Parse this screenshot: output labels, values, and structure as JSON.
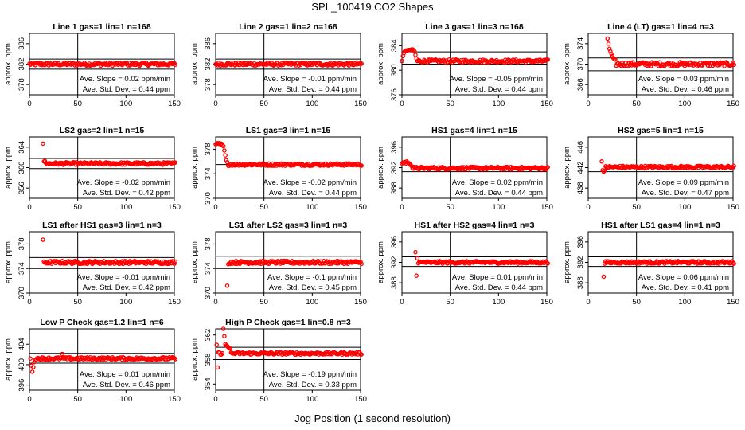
{
  "title": "SPL_100419  CO2 Shapes",
  "xlabel": "Jog Position (1 second resolution)",
  "ylabel": "approx. ppm",
  "stats_labels": {
    "slope": "Ave. Slope =",
    "slope_unit": "ppm/min",
    "std": "Ave. Std. Dev. =",
    "std_unit": "ppm"
  },
  "colors": {
    "points": "#ff0000",
    "axes": "#000000"
  },
  "chart_data": [
    {
      "type": "scatter",
      "title": "Line 1 gas=1 lin=1 n=168",
      "xlim": [
        0,
        150
      ],
      "ylim": [
        376,
        388
      ],
      "yticks": [
        378,
        382,
        386
      ],
      "xticks": [
        0,
        50,
        100,
        150
      ],
      "hlines": [
        381,
        383
      ],
      "vline": 50,
      "slope": "0.02",
      "std": "0.44",
      "profile": {
        "base": 382,
        "noise": 0.3,
        "spikes": []
      }
    },
    {
      "type": "scatter",
      "title": "Line 2 gas=1 lin=2 n=168",
      "xlim": [
        0,
        150
      ],
      "ylim": [
        376,
        388
      ],
      "yticks": [
        378,
        382,
        386
      ],
      "xticks": [
        0,
        50,
        100,
        150
      ],
      "hlines": [
        381,
        383
      ],
      "vline": 50,
      "slope": "-0.01",
      "std": "0.44",
      "profile": {
        "base": 382,
        "noise": 0.3,
        "spikes": []
      }
    },
    {
      "type": "scatter",
      "title": "Line 3 gas=1 lin=3 n=168",
      "xlim": [
        0,
        150
      ],
      "ylim": [
        376,
        386
      ],
      "yticks": [
        376,
        380,
        384
      ],
      "xticks": [
        0,
        50,
        100,
        150
      ],
      "hlines": [
        381,
        383
      ],
      "vline": 50,
      "slope": "-0.05",
      "std": "0.44",
      "profile": {
        "base": 381.5,
        "noise": 0.25,
        "spikes": [
          [
            1,
            382.3
          ],
          [
            2,
            382.8
          ],
          [
            3,
            383.1
          ],
          [
            4,
            383.2
          ],
          [
            5,
            383.2
          ],
          [
            6,
            383.3
          ],
          [
            7,
            383.3
          ],
          [
            8,
            383.3
          ],
          [
            9,
            383.3
          ],
          [
            10,
            383.4
          ],
          [
            11,
            383.4
          ],
          [
            12,
            383.3
          ],
          [
            13,
            383.1
          ],
          [
            14,
            382.5
          ],
          [
            15,
            381.9
          ]
        ]
      }
    },
    {
      "type": "scatter",
      "title": "Line 4 (LT) gas=1 lin=4 n=3",
      "xlim": [
        0,
        150
      ],
      "ylim": [
        364,
        376
      ],
      "yticks": [
        366,
        370,
        374
      ],
      "xticks": [
        0,
        50,
        100,
        150
      ],
      "hlines": [
        368.7,
        371.2
      ],
      "vline": 50,
      "slope": "0.03",
      "std": "0.46",
      "profile": {
        "base": 370,
        "noise": 0.4,
        "start": 20,
        "spikes": [
          [
            20,
            375
          ],
          [
            21,
            374
          ],
          [
            22,
            373
          ],
          [
            23,
            372.5
          ],
          [
            24,
            372
          ],
          [
            25,
            371.6
          ],
          [
            26,
            371.2
          ],
          [
            27,
            371
          ],
          [
            28,
            370.9
          ]
        ]
      }
    },
    {
      "type": "scatter",
      "title": "LS2 gas=2 lin=1 n=15",
      "xlim": [
        0,
        150
      ],
      "ylim": [
        354,
        366
      ],
      "yticks": [
        356,
        360,
        364
      ],
      "xticks": [
        0,
        50,
        100,
        150
      ],
      "hlines": [
        359.8,
        361.8
      ],
      "vline": 50,
      "slope": "-0.02",
      "std": "0.42",
      "profile": {
        "base": 360.8,
        "noise": 0.25,
        "start": 14,
        "spikes": [
          [
            14,
            364.7
          ],
          [
            15,
            361.2
          ],
          [
            16,
            361.3
          ]
        ]
      }
    },
    {
      "type": "scatter",
      "title": "LS1 gas=3 lin=1 n=15",
      "xlim": [
        0,
        150
      ],
      "ylim": [
        370,
        380
      ],
      "yticks": [
        370,
        374,
        378
      ],
      "xticks": [
        0,
        50,
        100,
        150
      ],
      "hlines": [
        375.5
      ],
      "vline": 50,
      "slope": "-0.02",
      "std": "0.44",
      "profile": {
        "base": 375.5,
        "noise": 0.2,
        "start": 0,
        "spikes": [
          [
            0,
            378.8
          ],
          [
            1,
            378.9
          ],
          [
            2,
            379
          ],
          [
            3,
            378.9
          ],
          [
            4,
            379
          ],
          [
            5,
            378.8
          ],
          [
            6,
            378.9
          ],
          [
            7,
            378.7
          ],
          [
            8,
            378.5
          ],
          [
            9,
            377.8
          ],
          [
            10,
            377
          ],
          [
            11,
            376.2
          ],
          [
            12,
            375.9
          ]
        ]
      }
    },
    {
      "type": "scatter",
      "title": "HS1 gas=4 lin=1 n=15",
      "xlim": [
        0,
        150
      ],
      "ylim": [
        386,
        398
      ],
      "yticks": [
        388,
        392,
        396
      ],
      "xticks": [
        0,
        50,
        100,
        150
      ],
      "hlines": [
        391.2,
        393.1
      ],
      "vline": 50,
      "slope": "0.02",
      "std": "0.44",
      "profile": {
        "base": 391.9,
        "noise": 0.25,
        "start": 0,
        "spikes": [
          [
            0,
            392.8
          ],
          [
            1,
            393
          ],
          [
            2,
            392.9
          ],
          [
            3,
            393.1
          ],
          [
            4,
            392.8
          ],
          [
            5,
            393.2
          ],
          [
            6,
            393
          ],
          [
            7,
            392.9
          ],
          [
            8,
            392.7
          ],
          [
            9,
            392.5
          ],
          [
            10,
            392.3
          ]
        ]
      }
    },
    {
      "type": "scatter",
      "title": "HS2 gas=5 lin=1 n=15",
      "xlim": [
        0,
        150
      ],
      "ylim": [
        436,
        448
      ],
      "yticks": [
        438,
        442,
        446
      ],
      "xticks": [
        0,
        50,
        100,
        150
      ],
      "hlines": [
        441.2,
        443.1
      ],
      "vline": 50,
      "slope": "0.09",
      "std": "0.47",
      "profile": {
        "base": 442.1,
        "noise": 0.25,
        "start": 14,
        "spikes": [
          [
            14,
            443.2
          ],
          [
            15,
            441.5
          ],
          [
            16,
            441.2
          ],
          [
            17,
            441.4
          ]
        ]
      }
    },
    {
      "type": "scatter",
      "title": "LS1 after HS1 gas=3 lin=1 n=3",
      "xlim": [
        0,
        150
      ],
      "ylim": [
        370,
        380
      ],
      "yticks": [
        370,
        374,
        378
      ],
      "xticks": [
        0,
        50,
        100,
        150
      ],
      "hlines": [
        374,
        375.8
      ],
      "vline": 50,
      "slope": "-0.01",
      "std": "0.42",
      "profile": {
        "base": 375,
        "noise": 0.25,
        "start": 14,
        "spikes": [
          [
            14,
            378.7
          ]
        ]
      }
    },
    {
      "type": "scatter",
      "title": "LS1 after LS2 gas=3 lin=1 n=3",
      "xlim": [
        0,
        150
      ],
      "ylim": [
        370,
        380
      ],
      "yticks": [
        370,
        374,
        378
      ],
      "xticks": [
        0,
        50,
        100,
        150
      ],
      "hlines": [
        374,
        376
      ],
      "vline": 50,
      "slope": "-0.1",
      "std": "0.45",
      "profile": {
        "base": 375,
        "noise": 0.25,
        "start": 12,
        "spikes": [
          [
            12,
            371.2
          ],
          [
            13,
            374.7
          ]
        ]
      }
    },
    {
      "type": "scatter",
      "title": "HS1 after HS2 gas=4 lin=1 n=3",
      "xlim": [
        0,
        150
      ],
      "ylim": [
        386,
        398
      ],
      "yticks": [
        388,
        392,
        396
      ],
      "xticks": [
        0,
        50,
        100,
        150
      ],
      "hlines": [
        391.2,
        393.1
      ],
      "vline": 50,
      "slope": "0.01",
      "std": "0.44",
      "profile": {
        "base": 392,
        "noise": 0.25,
        "start": 14,
        "spikes": [
          [
            14,
            394
          ],
          [
            15,
            389.4
          ],
          [
            16,
            392.8
          ]
        ]
      }
    },
    {
      "type": "scatter",
      "title": "HS1 after LS1 gas=4 lin=1 n=3",
      "xlim": [
        0,
        150
      ],
      "ylim": [
        386,
        398
      ],
      "yticks": [
        388,
        392,
        396
      ],
      "xticks": [
        0,
        50,
        100,
        150
      ],
      "hlines": [
        391.2,
        393.1
      ],
      "vline": 50,
      "slope": "0.06",
      "std": "0.41",
      "profile": {
        "base": 392,
        "noise": 0.25,
        "start": 16,
        "spikes": [
          [
            16,
            389.2
          ]
        ]
      }
    },
    {
      "type": "scatter",
      "title": "Low P Check gas=1.2 lin=1 n=6",
      "xlim": [
        0,
        150
      ],
      "ylim": [
        395,
        407
      ],
      "yticks": [
        396,
        400,
        404
      ],
      "xticks": [
        0,
        50,
        100,
        150
      ],
      "hlines": [
        400.3,
        402.2
      ],
      "vline": 50,
      "slope": "0.01",
      "std": "0.46",
      "profile": {
        "base": 401.2,
        "noise": 0.25,
        "start": 1,
        "spikes": [
          [
            1,
            401.2
          ],
          [
            2,
            399.8
          ],
          [
            3,
            398.6
          ],
          [
            4,
            399.5
          ],
          [
            5,
            400.5
          ],
          [
            6,
            400.9
          ],
          [
            34,
            402.1
          ]
        ]
      }
    },
    {
      "type": "scatter",
      "title": "High P Check gas=1 lin=0.8 n=3",
      "xlim": [
        0,
        150
      ],
      "ylim": [
        353,
        363
      ],
      "yticks": [
        354,
        358,
        362
      ],
      "xticks": [
        0,
        50,
        100,
        150
      ],
      "hlines": [
        358,
        360
      ],
      "vline": 50,
      "slope": "-0.19",
      "std": "0.33",
      "profile": {
        "base": 359,
        "noise": 0.2,
        "start": 1,
        "spikes": [
          [
            1,
            360.4
          ],
          [
            2,
            356.7
          ],
          [
            8,
            363
          ],
          [
            9,
            361.8
          ],
          [
            10,
            360.5
          ],
          [
            11,
            360.3
          ],
          [
            12,
            360.2
          ],
          [
            13,
            360
          ],
          [
            14,
            359.9
          ],
          [
            15,
            359.8
          ]
        ]
      }
    }
  ]
}
